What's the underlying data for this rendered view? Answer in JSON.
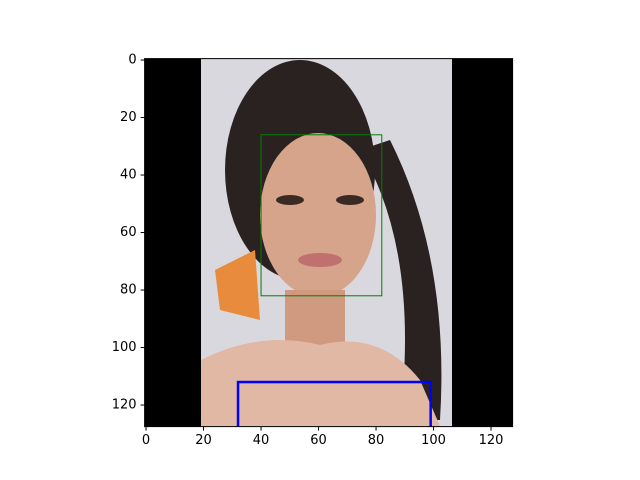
{
  "chart_data": {
    "type": "image",
    "xlim": [
      -0.5,
      127.5
    ],
    "ylim": [
      127.5,
      -0.5
    ],
    "xticks": [
      0,
      20,
      40,
      60,
      80,
      100,
      120
    ],
    "yticks": [
      0,
      20,
      40,
      60,
      80,
      100,
      120
    ],
    "boxes": [
      {
        "color": "#008000",
        "x": [
          40,
          82
        ],
        "y": [
          26,
          82
        ],
        "width": 1
      },
      {
        "color": "#0000ff",
        "x": [
          32,
          99
        ],
        "y": [
          112,
          128
        ],
        "width": 2.5
      }
    ]
  }
}
